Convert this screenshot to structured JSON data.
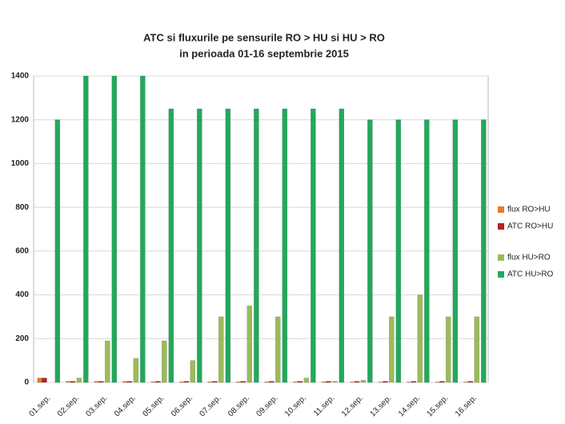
{
  "chart_data": {
    "type": "bar",
    "title": "ATC si fluxurile pe sensurile RO > HU si HU > RO",
    "subtitle": "in perioada 01-16 septembrie 2015",
    "categories": [
      "01.sep.",
      "02.sep.",
      "03.sep.",
      "04.sep.",
      "05.sep.",
      "06.sep.",
      "07.sep.",
      "08.sep.",
      "09.sep.",
      "10.sep.",
      "11.sep.",
      "12.sep.",
      "13.sep.",
      "14.sep.",
      "15.sep.",
      "16.sep."
    ],
    "series": [
      {
        "name": "flux RO>HU",
        "color": "#e8782a",
        "values": [
          20,
          5,
          5,
          5,
          3,
          3,
          3,
          3,
          3,
          3,
          3,
          2,
          2,
          2,
          2,
          2
        ]
      },
      {
        "name": "ATC RO>HU",
        "color": "#b3231b",
        "values": [
          20,
          5,
          5,
          5,
          5,
          5,
          5,
          5,
          5,
          5,
          5,
          5,
          5,
          5,
          5,
          5
        ]
      },
      {
        "name": "flux HU>RO",
        "color": "#9bbb59",
        "values": [
          0,
          20,
          190,
          110,
          190,
          100,
          300,
          350,
          300,
          20,
          5,
          10,
          300,
          400,
          300,
          300
        ]
      },
      {
        "name": "ATC HU>RO",
        "color": "#21a95b",
        "values": [
          1200,
          1400,
          1400,
          1400,
          1250,
          1250,
          1250,
          1250,
          1250,
          1250,
          1250,
          1200,
          1200,
          1200,
          1200,
          1200
        ]
      }
    ],
    "ylim": [
      0,
      1400
    ],
    "yticks": [
      0,
      200,
      400,
      600,
      800,
      1000,
      1200,
      1400
    ],
    "grid": true
  }
}
